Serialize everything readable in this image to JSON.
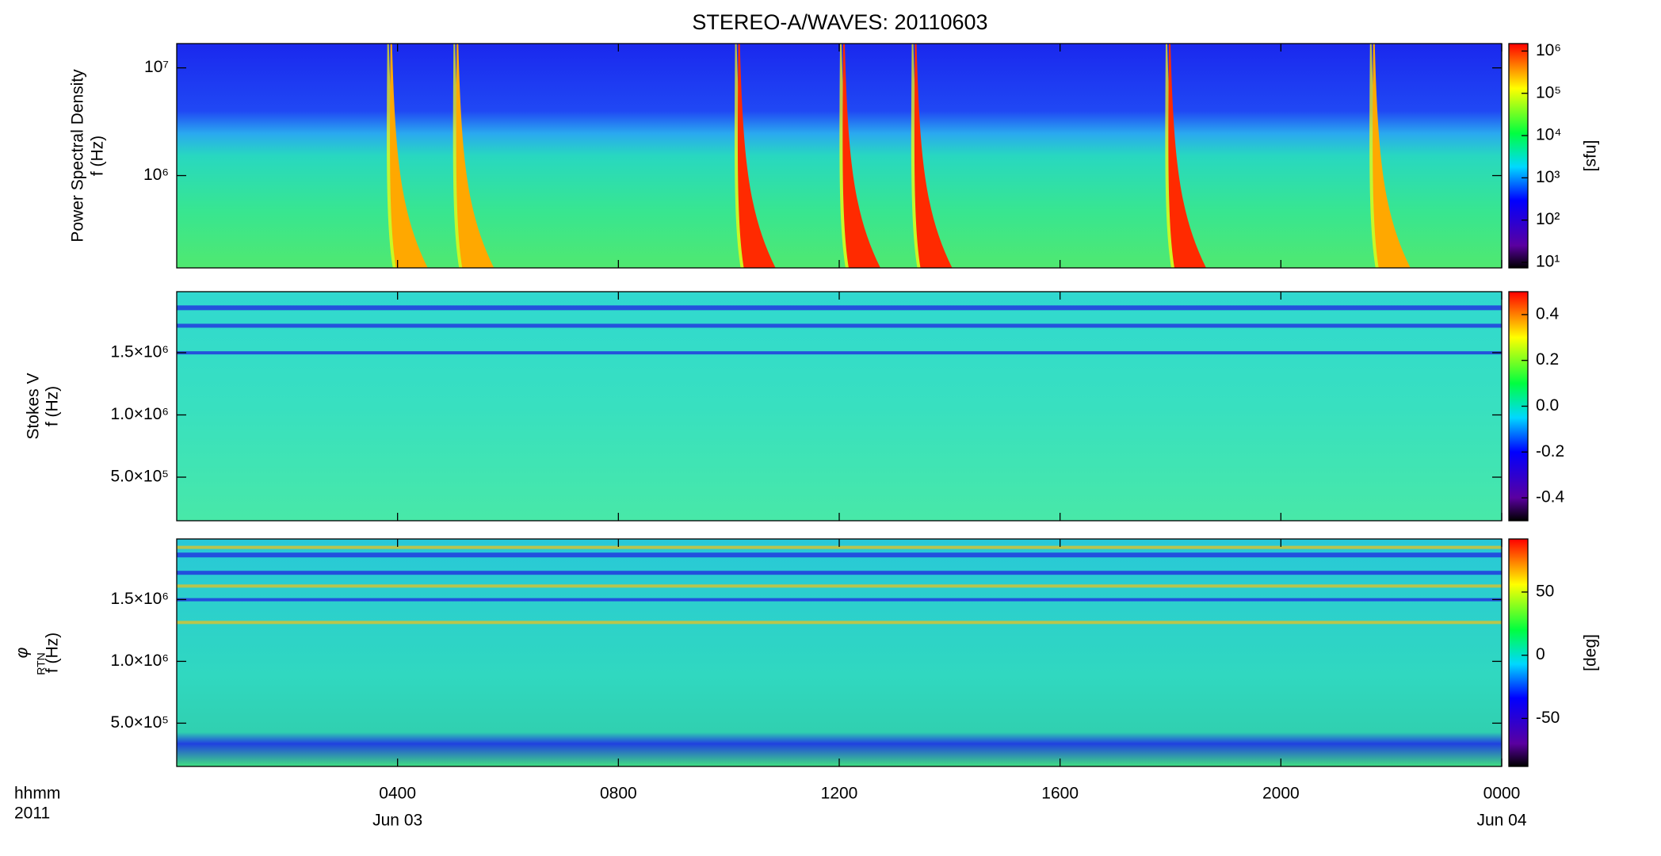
{
  "title": "STEREO-A/WAVES: 20110603",
  "chart_data": [
    {
      "type": "heatmap",
      "ylabel": "Power Spectral Density",
      "ylabel2": "f (Hz)",
      "ylog": true,
      "xlim": [
        0,
        24
      ],
      "xticks": [
        4,
        8,
        12,
        16,
        20,
        24
      ],
      "ylim": [
        139000,
        16800000
      ],
      "yticks": [
        {
          "value": 1000000,
          "label": "10⁶"
        },
        {
          "value": 10000000,
          "label": "10⁷"
        }
      ],
      "clog": true,
      "clim": [
        7.4,
        1500000
      ],
      "clabel": "[sfu]",
      "cticks": [
        {
          "value": 10,
          "label": "10¹"
        },
        {
          "value": 100,
          "label": "10²"
        },
        {
          "value": 1000,
          "label": "10³"
        },
        {
          "value": 10000,
          "label": "10⁴"
        },
        {
          "value": 100000,
          "label": "10⁵"
        },
        {
          "value": 1000000,
          "label": "10⁶"
        }
      ],
      "bursts": {
        "x": [
          3.9,
          5.1,
          10.2,
          12.1,
          13.4,
          18.0,
          21.7
        ],
        "values": [
          300000,
          300000,
          1000000,
          1000000,
          1000000,
          1000000,
          300000
        ]
      }
    },
    {
      "type": "heatmap",
      "ylabel": "Stokes V",
      "ylabel2": "f (Hz)",
      "ylog": false,
      "xlim": [
        0,
        24
      ],
      "xticks": [
        4,
        8,
        12,
        16,
        20,
        24
      ],
      "ylim": [
        150000,
        1990000
      ],
      "yticks": [
        {
          "value": 500000,
          "label": "5.0×10⁵"
        },
        {
          "value": 1000000,
          "label": "1.0×10⁶"
        },
        {
          "value": 1500000,
          "label": "1.5×10⁶"
        }
      ],
      "clog": false,
      "clim": [
        -0.5,
        0.5
      ],
      "cticks": [
        -0.4,
        -0.2,
        {
          "value": 0,
          "label": "0.0"
        },
        0.2,
        0.4
      ]
    },
    {
      "type": "heatmap",
      "ylabel": "φ",
      "ylabel_sub": "RTN",
      "ylabel2": "f (Hz)",
      "ylog": false,
      "xlim": [
        0,
        24
      ],
      "xticks": [
        {
          "value": 4,
          "label": "0400"
        },
        {
          "value": 8,
          "label": "0800"
        },
        {
          "value": 12,
          "label": "1200"
        },
        {
          "value": 16,
          "label": "1600"
        },
        {
          "value": 20,
          "label": "2000"
        },
        {
          "value": 24,
          "label": "0000"
        }
      ],
      "xdates": [
        {
          "value": 4,
          "label": "Jun 03"
        },
        {
          "value": 24,
          "label": "Jun 04"
        }
      ],
      "xaxis_label": "hhmm",
      "year_label": "2011",
      "ylim": [
        150000,
        1990000
      ],
      "yticks": [
        {
          "value": 500000,
          "label": "5.0×10⁵"
        },
        {
          "value": 1000000,
          "label": "1.0×10⁶"
        },
        {
          "value": 1500000,
          "label": "1.5×10⁶"
        }
      ],
      "clog": false,
      "clim": [
        -88,
        92
      ],
      "clabel": "[deg]",
      "cticks": [
        -50,
        0,
        50
      ]
    }
  ]
}
